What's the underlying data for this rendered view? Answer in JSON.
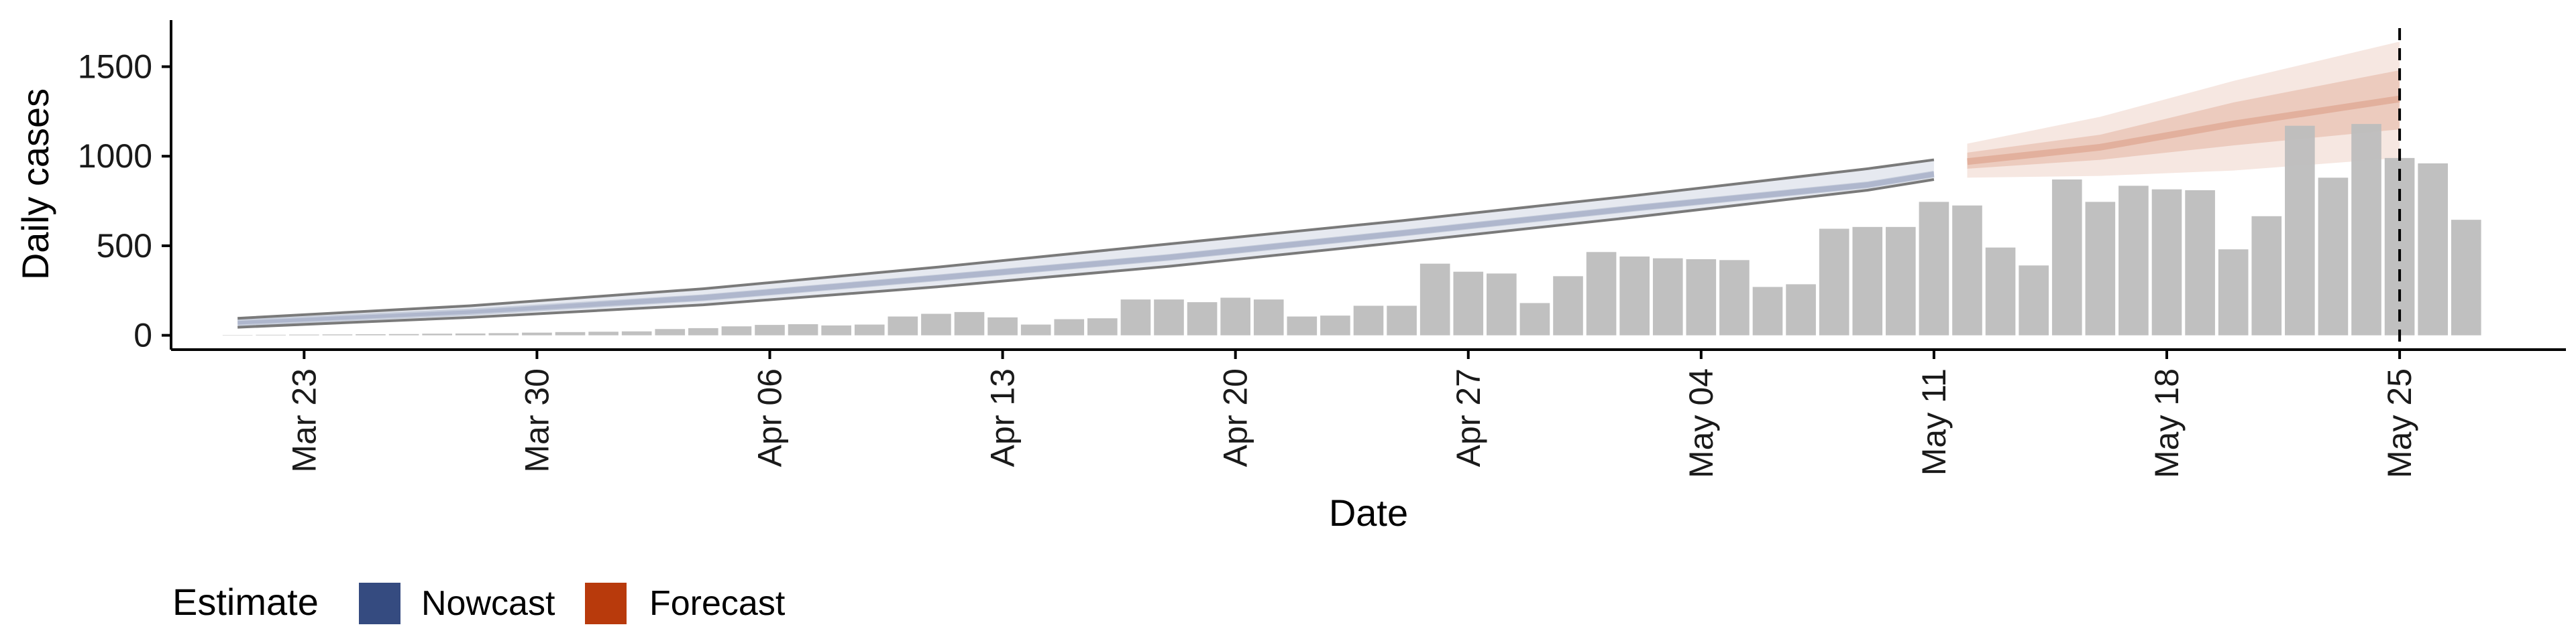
{
  "chart_data": {
    "type": "bar",
    "xlabel": "Date",
    "ylabel": "Daily cases",
    "x_range": [
      "2020-03-19",
      "2020-05-30"
    ],
    "ylim": [
      -80,
      1760
    ],
    "y_ticks": [
      0,
      500,
      1000,
      1500
    ],
    "x_ticks": [
      {
        "date": "2020-03-23",
        "label": "Mar 23"
      },
      {
        "date": "2020-03-30",
        "label": "Mar 30"
      },
      {
        "date": "2020-04-06",
        "label": "Apr 06"
      },
      {
        "date": "2020-04-13",
        "label": "Apr 13"
      },
      {
        "date": "2020-04-20",
        "label": "Apr 20"
      },
      {
        "date": "2020-04-27",
        "label": "Apr 27"
      },
      {
        "date": "2020-05-04",
        "label": "May 04"
      },
      {
        "date": "2020-05-11",
        "label": "May 11"
      },
      {
        "date": "2020-05-18",
        "label": "May 18"
      },
      {
        "date": "2020-05-25",
        "label": "May 25"
      }
    ],
    "grid": false,
    "legend": {
      "title": "Estimate",
      "position": "bottom-left",
      "items": [
        {
          "label": "Nowcast",
          "color": "#354B80"
        },
        {
          "label": "Forecast",
          "color": "#B83A0C"
        }
      ]
    },
    "reference_line": {
      "date": "2020-05-25",
      "style": "dashed"
    },
    "bars": {
      "color": "#bdbdbd",
      "start_date": "2020-03-21",
      "values": [
        2,
        3,
        4,
        5,
        6,
        7,
        9,
        10,
        12,
        15,
        18,
        20,
        22,
        35,
        40,
        50,
        58,
        62,
        55,
        60,
        105,
        120,
        130,
        100,
        60,
        90,
        95,
        200,
        200,
        185,
        210,
        200,
        105,
        110,
        165,
        165,
        400,
        355,
        345,
        180,
        330,
        465,
        440,
        430,
        425,
        420,
        270,
        285,
        595,
        605,
        605,
        745,
        725,
        490,
        390,
        870,
        745,
        835,
        815,
        810,
        480,
        665,
        1170,
        880,
        1180,
        990,
        960,
        645
      ]
    },
    "series": [
      {
        "name": "Nowcast",
        "color": "#354B80",
        "x": [
          "2020-03-21",
          "2020-03-28",
          "2020-04-04",
          "2020-04-11",
          "2020-04-18",
          "2020-04-25",
          "2020-05-02",
          "2020-05-09",
          "2020-05-11"
        ],
        "median": [
          70,
          130,
          210,
          320,
          435,
          570,
          710,
          840,
          900
        ],
        "lower_90": [
          45,
          100,
          170,
          270,
          385,
          520,
          660,
          810,
          870
        ],
        "upper_90": [
          95,
          165,
          260,
          380,
          510,
          640,
          780,
          930,
          980
        ],
        "lower_50": [
          60,
          120,
          195,
          305,
          420,
          555,
          695,
          825,
          885
        ],
        "upper_50": [
          80,
          140,
          225,
          335,
          450,
          585,
          725,
          855,
          915
        ]
      },
      {
        "name": "Forecast",
        "color": "#B83A0C",
        "x": [
          "2020-05-12",
          "2020-05-16",
          "2020-05-20",
          "2020-05-25"
        ],
        "median": [
          970,
          1050,
          1180,
          1320
        ],
        "lower_90": [
          880,
          890,
          920,
          990
        ],
        "upper_90": [
          1070,
          1220,
          1420,
          1640
        ],
        "lower_50": [
          930,
          980,
          1060,
          1150
        ],
        "upper_50": [
          1020,
          1120,
          1300,
          1480
        ]
      }
    ]
  }
}
